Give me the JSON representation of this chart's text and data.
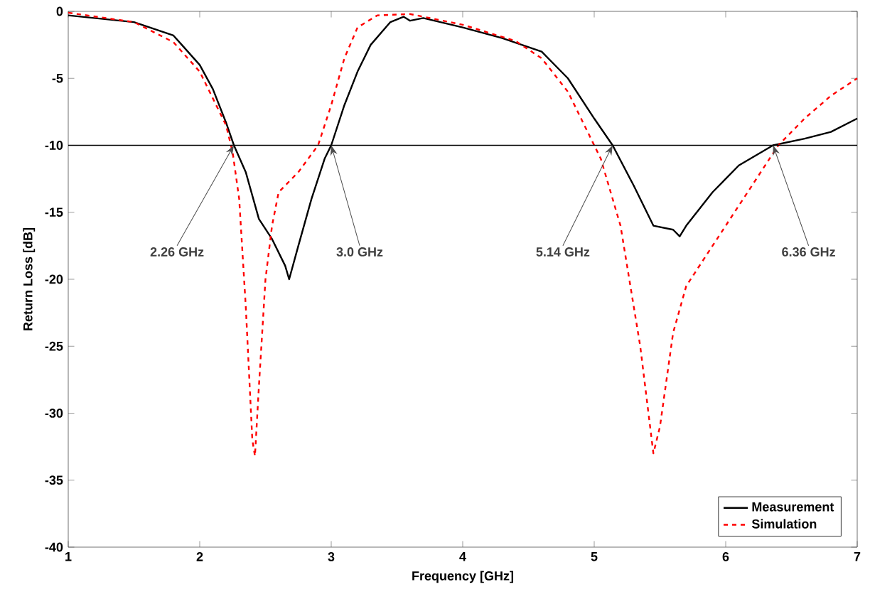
{
  "chart_data": {
    "type": "line",
    "xlabel": "Frequency [GHz]",
    "ylabel": "Return Loss [dB]",
    "xlim": [
      1,
      7
    ],
    "ylim": [
      -40,
      0
    ],
    "xticks": [
      1,
      2,
      3,
      4,
      5,
      6,
      7
    ],
    "yticks": [
      -40,
      -35,
      -30,
      -25,
      -20,
      -15,
      -10,
      -5,
      0
    ],
    "grid": false,
    "legend": "bottom right",
    "marker": "none",
    "series": [
      {
        "name": "Measurement",
        "color": "#000000",
        "line_style": "solid",
        "x": [
          1.0,
          1.5,
          1.8,
          2.0,
          2.1,
          2.2,
          2.26,
          2.35,
          2.45,
          2.55,
          2.65,
          2.68,
          2.75,
          2.85,
          2.95,
          3.0,
          3.1,
          3.2,
          3.3,
          3.45,
          3.55,
          3.6,
          3.7,
          4.0,
          4.3,
          4.6,
          4.8,
          5.0,
          5.14,
          5.3,
          5.45,
          5.6,
          5.65,
          5.7,
          5.9,
          6.1,
          6.36,
          6.6,
          6.8,
          7.0
        ],
        "values": [
          -0.3,
          -0.8,
          -1.8,
          -4,
          -5.8,
          -8.3,
          -10,
          -12,
          -15.5,
          -17,
          -19,
          -20,
          -17.5,
          -14,
          -11,
          -10,
          -7,
          -4.5,
          -2.5,
          -0.8,
          -0.4,
          -0.7,
          -0.5,
          -1.2,
          -2,
          -3,
          -5,
          -8,
          -10,
          -13,
          -16,
          -16.3,
          -16.8,
          -16,
          -13.5,
          -11.5,
          -10,
          -9.5,
          -9,
          -8
        ]
      },
      {
        "name": "Simulation",
        "color": "#ff0000",
        "line_style": "dashed",
        "x": [
          1.0,
          1.5,
          1.8,
          2.0,
          2.2,
          2.25,
          2.3,
          2.35,
          2.4,
          2.42,
          2.45,
          2.5,
          2.55,
          2.6,
          2.75,
          2.9,
          3.0,
          3.1,
          3.2,
          3.35,
          3.6,
          4.0,
          4.4,
          4.6,
          4.8,
          4.95,
          5.05,
          5.2,
          5.35,
          5.45,
          5.5,
          5.6,
          5.7,
          6.0,
          6.2,
          6.4,
          6.6,
          6.8,
          7.0
        ],
        "values": [
          -0.1,
          -0.8,
          -2.3,
          -4.5,
          -8.5,
          -10.5,
          -14,
          -22,
          -32,
          -33.2,
          -28,
          -20,
          -16,
          -13.5,
          -12,
          -10,
          -7,
          -3.5,
          -1.2,
          -0.3,
          -0.2,
          -1,
          -2.2,
          -3.5,
          -6,
          -9,
          -11,
          -16,
          -25,
          -33,
          -31,
          -24,
          -20.5,
          -16,
          -13,
          -10,
          -8,
          -6.3,
          -5
        ]
      }
    ],
    "ref_lines": [
      {
        "axis": "y",
        "value": -10,
        "color": "#000000"
      }
    ],
    "annotations": [
      {
        "text": "2.26 GHz",
        "x": 2.26,
        "y": -10
      },
      {
        "text": "3.0 GHz",
        "x": 3.0,
        "y": -10
      },
      {
        "text": "5.14 GHz",
        "x": 5.14,
        "y": -10
      },
      {
        "text": "6.36 GHz",
        "x": 6.36,
        "y": -10
      }
    ]
  }
}
